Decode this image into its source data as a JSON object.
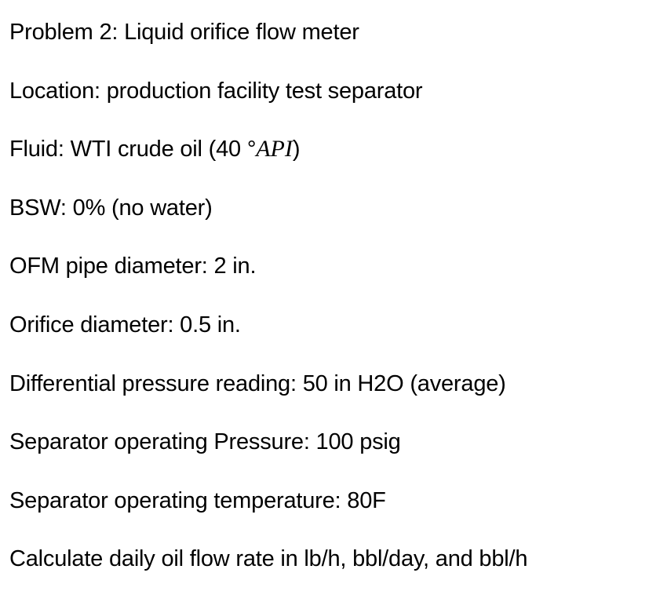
{
  "document": {
    "background_color": "#ffffff",
    "text_color": "#000000",
    "title_line": "Problem 2: Liquid orifice flow meter",
    "location_line": "Location: production facility test separator",
    "fluid_line": {
      "pre": "Fluid: WTI crude oil (40 °",
      "math": "API",
      "post": ")"
    },
    "bsw_line": "BSW: 0% (no water)",
    "pipe_diameter_line": "OFM pipe diameter: 2 in.",
    "orifice_diameter_line": "Orifice diameter: 0.5 in.",
    "differential_pressure_line": "Differential pressure reading: 50 in H2O (average)",
    "operating_pressure_line": "Separator operating Pressure: 100 psig",
    "operating_temperature_line": "Separator operating temperature: 80F",
    "task_line": "Calculate daily oil flow rate in lb/h, bbl/day, and bbl/h"
  }
}
